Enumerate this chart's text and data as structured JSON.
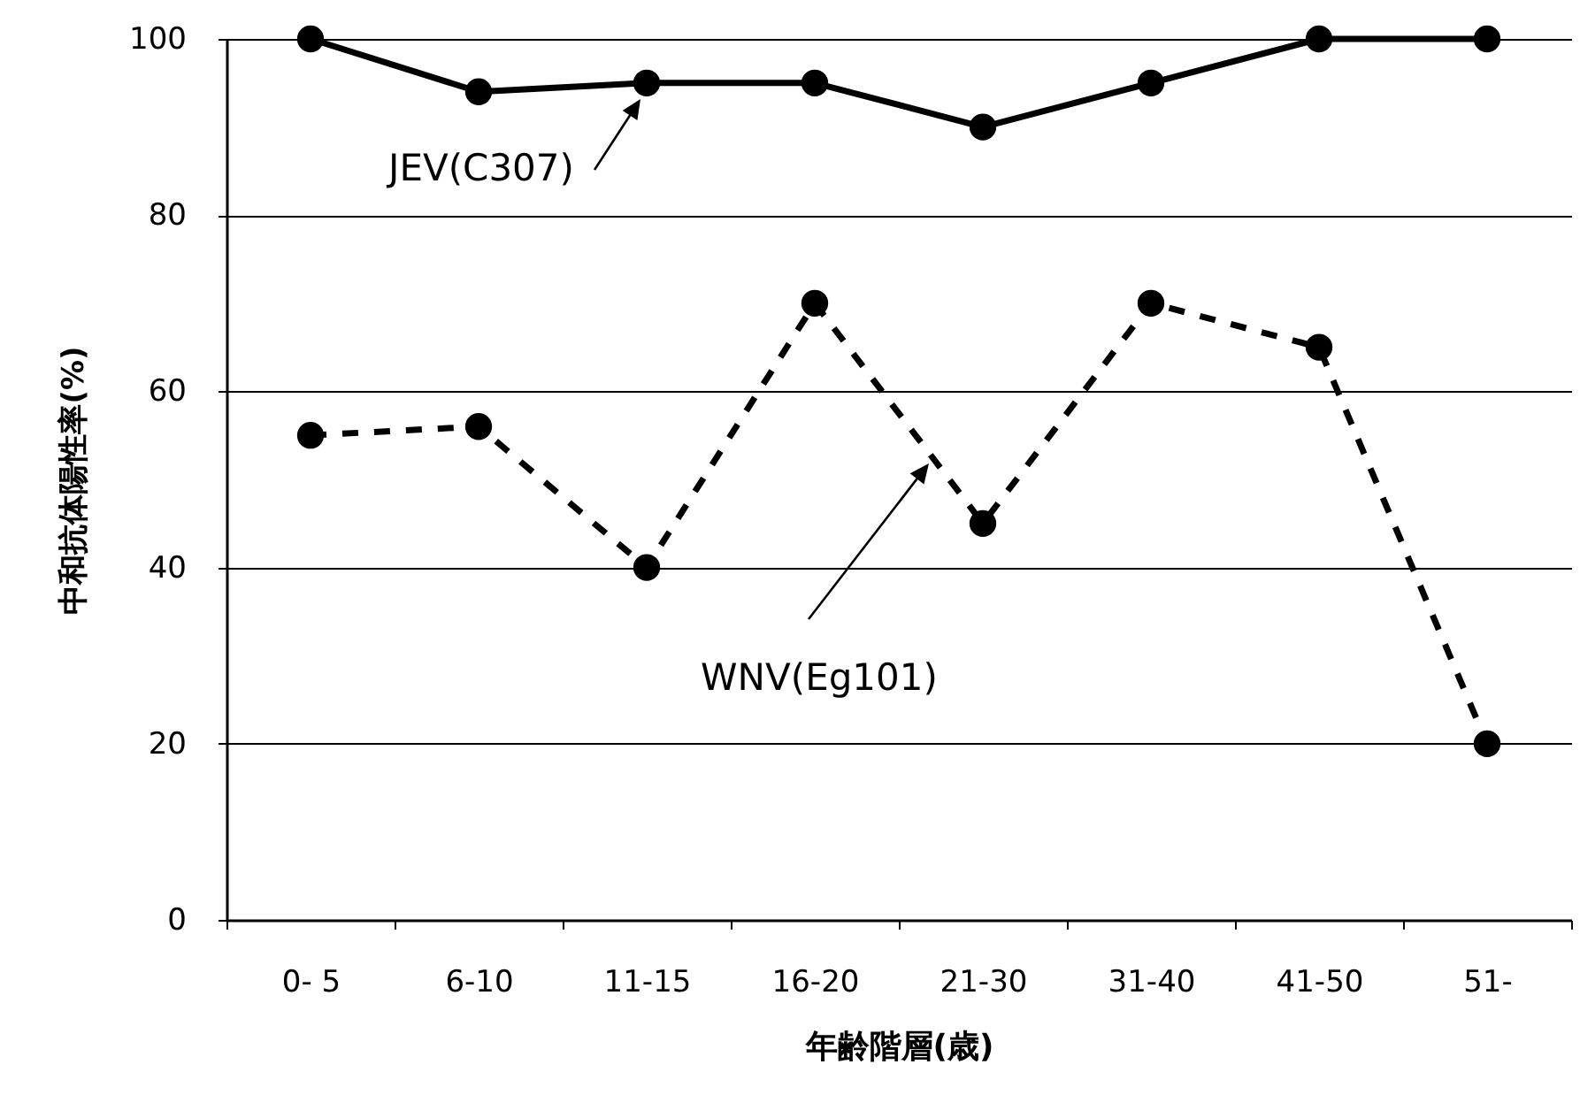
{
  "chart_data": {
    "type": "line",
    "xlabel": "年齢階層(歳)",
    "ylabel": "中和抗体陽性率(%)",
    "categories": [
      "0- 5",
      "6-10",
      "11-15",
      "16-20",
      "21-30",
      "31-40",
      "41-50",
      "51-"
    ],
    "series": [
      {
        "name": "JEV(C307)",
        "color": "#000000",
        "line_style": "solid",
        "values": [
          100,
          94,
          95,
          95,
          90,
          95,
          100,
          100
        ]
      },
      {
        "name": "WNV(Eg101)",
        "color": "#000000",
        "line_style": "dashed",
        "values": [
          55,
          56,
          40,
          70,
          45,
          70,
          65,
          20
        ]
      }
    ],
    "ylim": [
      0,
      100
    ],
    "yticks": [
      0,
      20,
      40,
      60,
      80,
      100
    ],
    "grid": "y",
    "marker": "circle",
    "legend": false
  }
}
